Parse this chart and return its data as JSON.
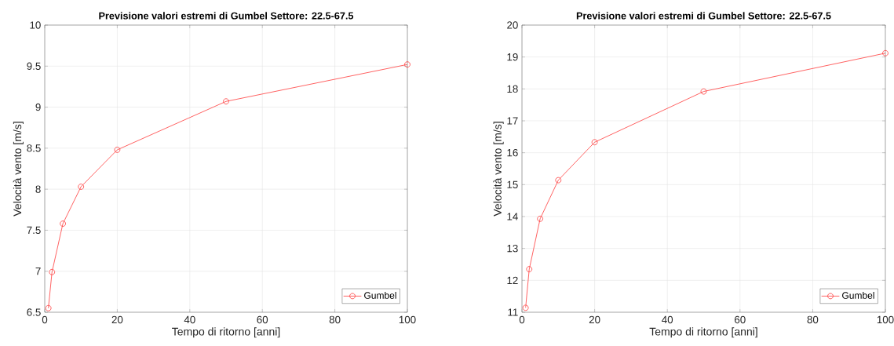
{
  "chart_data": [
    {
      "type": "line",
      "title": "Previsione valori estremi di Gumbel Settore: 22.5-67.5",
      "xlabel": "Tempo di ritorno [anni]",
      "ylabel": "Velocità vento [m/s]",
      "x": [
        1,
        2,
        5,
        10,
        20,
        50,
        100
      ],
      "series": [
        {
          "name": "Gumbel",
          "color": "#ff3b3b",
          "values": [
            6.55,
            6.99,
            7.58,
            8.03,
            8.48,
            9.07,
            9.52
          ]
        }
      ],
      "xlim": [
        0,
        100
      ],
      "ylim": [
        6.5,
        10
      ],
      "xticks": [
        0,
        20,
        40,
        60,
        80,
        100
      ],
      "yticks": [
        6.5,
        7,
        7.5,
        8,
        8.5,
        9,
        9.5,
        10
      ],
      "grid": true,
      "legend": "bottom right",
      "marker": "circle",
      "line_style": "solid"
    },
    {
      "type": "line",
      "title": "Previsione valori estremi di Gumbel Settore: 22.5-67.5",
      "xlabel": "Tempo di ritorno [anni]",
      "ylabel": "Velocità vento [m/s]",
      "x": [
        1,
        2,
        5,
        10,
        20,
        50,
        100
      ],
      "series": [
        {
          "name": "Gumbel",
          "color": "#ff3b3b",
          "values": [
            11.14,
            12.35,
            13.93,
            15.14,
            16.33,
            17.92,
            19.12
          ]
        }
      ],
      "xlim": [
        0,
        100
      ],
      "ylim": [
        11,
        20
      ],
      "xticks": [
        0,
        20,
        40,
        60,
        80,
        100
      ],
      "yticks": [
        11,
        12,
        13,
        14,
        15,
        16,
        17,
        18,
        19,
        20
      ],
      "grid": true,
      "legend": "bottom right",
      "marker": "circle",
      "line_style": "solid"
    }
  ]
}
